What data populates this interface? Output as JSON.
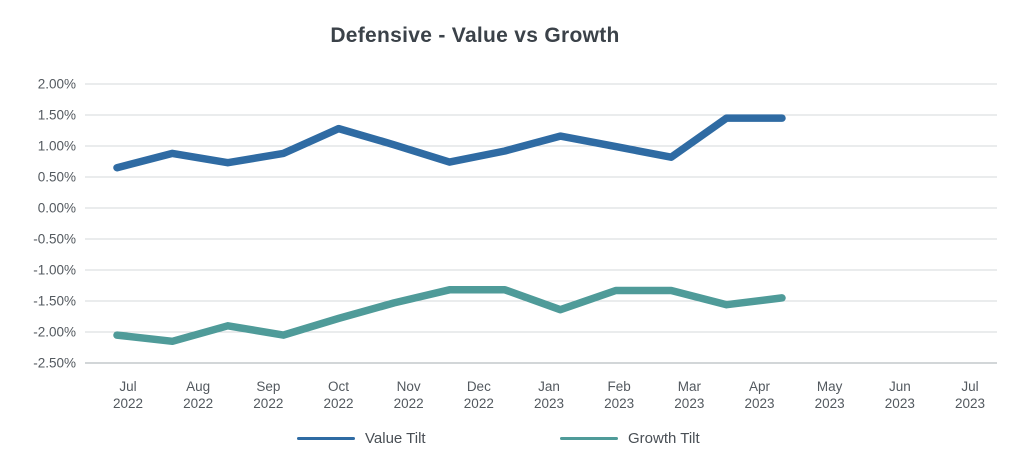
{
  "title": "Defensive - Value vs Growth",
  "chart_data": {
    "type": "line",
    "title": "Defensive - Value vs Growth",
    "xlabel": "",
    "ylabel": "",
    "categories": [
      "Jul 2022",
      "Aug 2022",
      "Sep 2022",
      "Oct 2022",
      "Nov 2022",
      "Dec 2022",
      "Jan 2023",
      "Feb 2023",
      "Mar 2023",
      "Apr 2023",
      "May 2023",
      "Jun 2023",
      "Jul 2023"
    ],
    "series": [
      {
        "name": "Value Tilt",
        "color": "#2f6ba3",
        "values": [
          0.65,
          0.88,
          0.73,
          0.88,
          1.28,
          1.02,
          0.74,
          0.92,
          1.16,
          0.99,
          0.82,
          1.45,
          1.45
        ]
      },
      {
        "name": "Growth Tilt",
        "color": "#4f9b99",
        "values": [
          -2.05,
          -2.15,
          -1.9,
          -2.05,
          -1.78,
          -1.53,
          -1.32,
          -1.32,
          -1.64,
          -1.33,
          -1.33,
          -1.56,
          -1.45
        ]
      }
    ],
    "y_axis": {
      "min": -2.5,
      "max": 2.0,
      "step": 0.5,
      "tick_values": [
        2.0,
        1.5,
        1.0,
        0.5,
        0.0,
        -0.5,
        -1.0,
        -1.5,
        -2.0,
        -2.5
      ],
      "tick_labels": [
        "2.00%",
        "1.50%",
        "1.00%",
        "0.50%",
        "0.00%",
        "-0.50%",
        "-1.00%",
        "-1.50%",
        "-2.00%",
        "-2.50%"
      ]
    },
    "grid": true,
    "legend_position": "bottom",
    "colors": {
      "grid_line": "#d6d9db",
      "bottom_grid_line": "#c4c8cb",
      "tick_text": "#53595f",
      "title_text": "#3b4249"
    }
  }
}
